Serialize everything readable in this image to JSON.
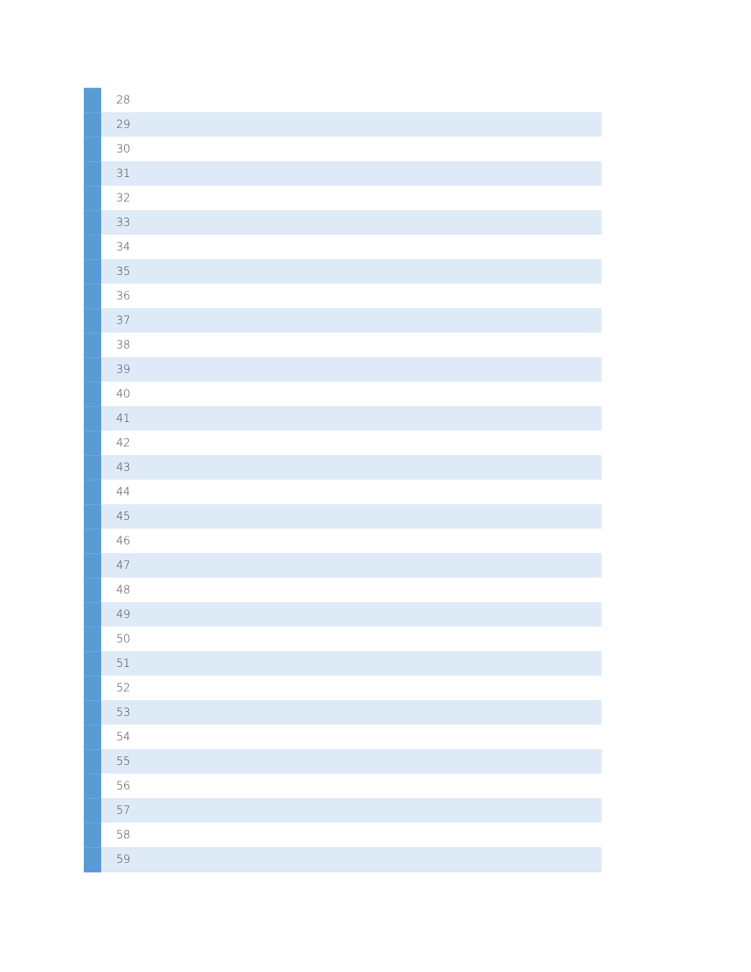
{
  "accent_color": "#5b9bd5",
  "band_color": "#deeaf6",
  "rows": [
    "28",
    "29",
    "30",
    "31",
    "32",
    "33",
    "34",
    "35",
    "36",
    "37",
    "38",
    "39",
    "40",
    "41",
    "42",
    "43",
    "44",
    "45",
    "46",
    "47",
    "48",
    "49",
    "50",
    "51",
    "52",
    "53",
    "54",
    "55",
    "56",
    "57",
    "58",
    "59"
  ]
}
